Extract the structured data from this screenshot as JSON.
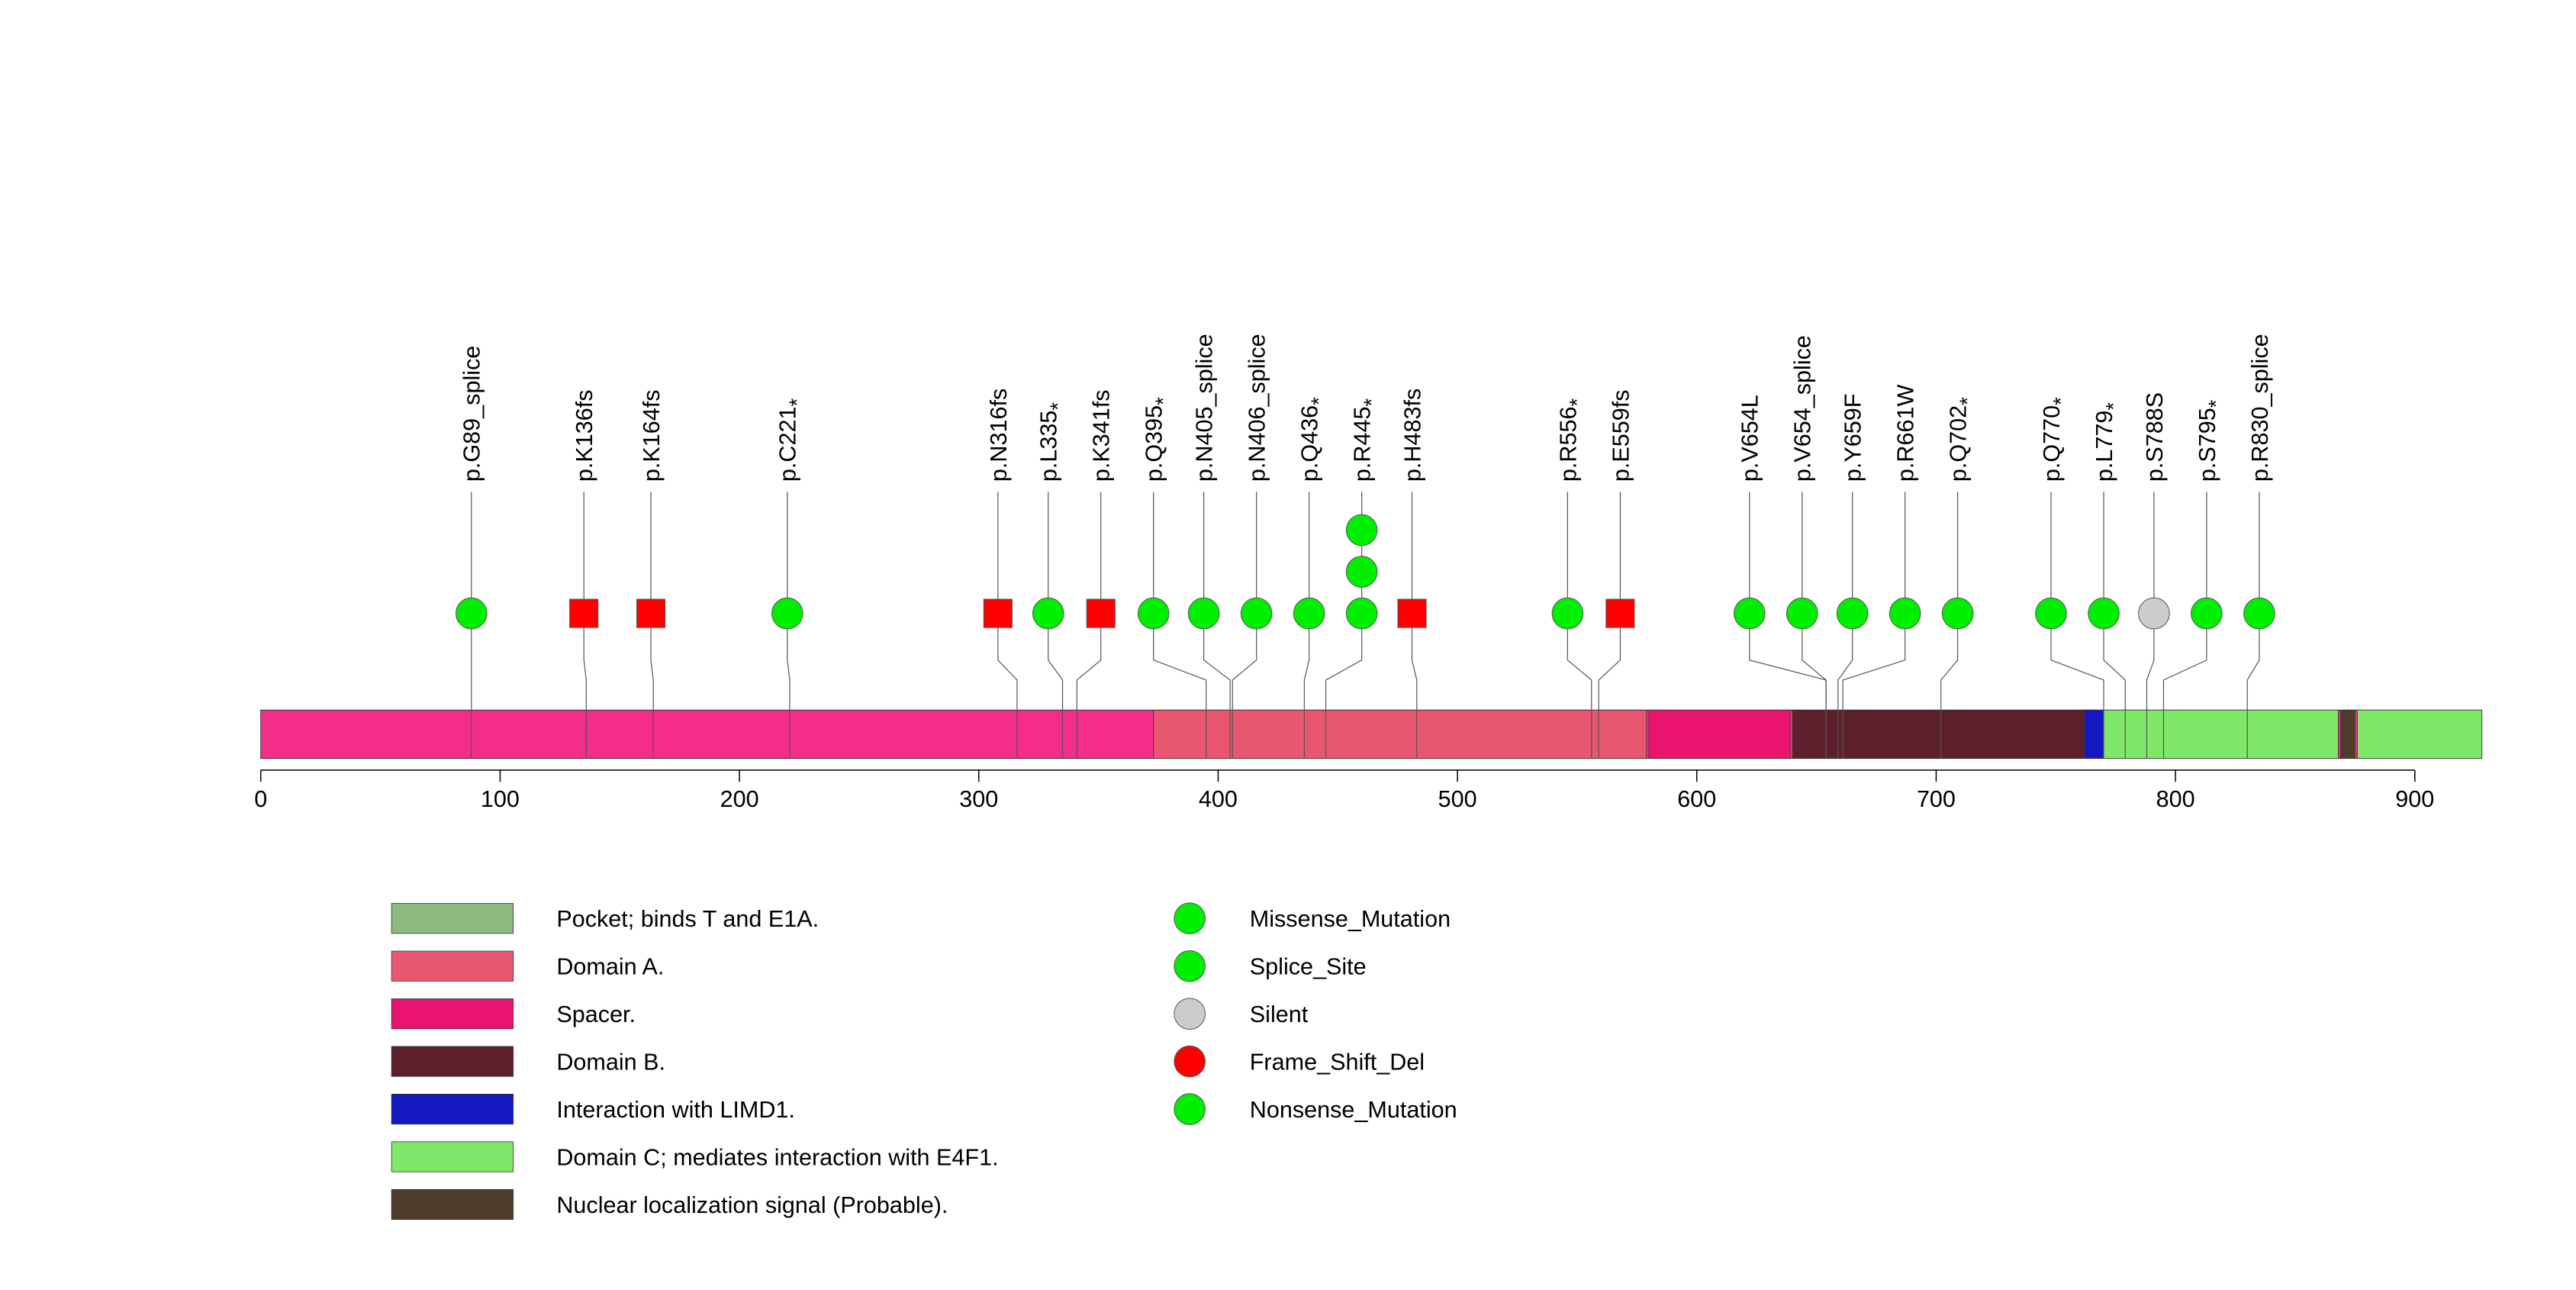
{
  "chart_data": {
    "type": "lollipop",
    "title": "",
    "xlabel": "",
    "ylabel": "",
    "axis": {
      "min": 0,
      "max": 928,
      "ticks": [
        0,
        100,
        200,
        300,
        400,
        500,
        600,
        700,
        800,
        900
      ]
    },
    "protein_length": 928,
    "colors": {
      "base_bar": "#f42d8a",
      "mutation_line": "#555555"
    },
    "domains": [
      {
        "name": "Domain A.",
        "start": 373,
        "end": 579,
        "color": "#e8566f"
      },
      {
        "name": "Spacer.",
        "start": 580,
        "end": 639,
        "color": "#e8146e"
      },
      {
        "name": "Domain B.",
        "start": 640,
        "end": 767,
        "color": "#5e1f2d"
      },
      {
        "name": "Interaction with LIMD1.",
        "start": 762,
        "end": 770,
        "color": "#1418c0"
      },
      {
        "name": "Domain C; mediates interaction with E4F1.",
        "start": 770,
        "end": 868,
        "color": "#80e868"
      },
      {
        "name": "Nuclear localization signal (Probable).",
        "start": 869,
        "end": 875,
        "color": "#4d3d2a"
      },
      {
        "name": "Domain C; mediates interaction with E4F1.",
        "start": 876,
        "end": 928,
        "color": "#80e868"
      }
    ],
    "mutation_types": {
      "Missense_Mutation": {
        "color": "#00ee00",
        "shape": "circle"
      },
      "Splice_Site": {
        "color": "#00ee00",
        "shape": "circle"
      },
      "Silent": {
        "color": "#cccccc",
        "shape": "circle"
      },
      "Frame_Shift_Del": {
        "color": "#ff0000",
        "shape": "square"
      },
      "Nonsense_Mutation": {
        "color": "#00ee00",
        "shape": "circle"
      }
    },
    "mutations": [
      {
        "label": "p.G89_splice",
        "star": false,
        "pos": 88,
        "display": 88,
        "type": "Splice_Site",
        "count": 1
      },
      {
        "label": "p.K136fs",
        "star": false,
        "pos": 136,
        "display": 135,
        "type": "Frame_Shift_Del",
        "count": 1
      },
      {
        "label": "p.K164fs",
        "star": false,
        "pos": 164,
        "display": 163,
        "type": "Frame_Shift_Del",
        "count": 1
      },
      {
        "label": "p.C221",
        "star": true,
        "pos": 221,
        "display": 220,
        "type": "Nonsense_Mutation",
        "count": 1
      },
      {
        "label": "p.N316fs",
        "star": false,
        "pos": 316,
        "display": 308,
        "type": "Frame_Shift_Del",
        "count": 1
      },
      {
        "label": "p.L335",
        "star": true,
        "pos": 335,
        "display": 329,
        "type": "Nonsense_Mutation",
        "count": 1
      },
      {
        "label": "p.K341fs",
        "star": false,
        "pos": 341,
        "display": 351,
        "type": "Frame_Shift_Del",
        "count": 1
      },
      {
        "label": "p.Q395",
        "star": true,
        "pos": 395,
        "display": 373,
        "type": "Nonsense_Mutation",
        "count": 1
      },
      {
        "label": "p.N405_splice",
        "star": false,
        "pos": 405,
        "display": 394,
        "type": "Splice_Site",
        "count": 1
      },
      {
        "label": "p.N406_splice",
        "star": false,
        "pos": 406,
        "display": 416,
        "type": "Splice_Site",
        "count": 1
      },
      {
        "label": "p.Q436",
        "star": true,
        "pos": 436,
        "display": 438,
        "type": "Nonsense_Mutation",
        "count": 1
      },
      {
        "label": "p.R445",
        "star": true,
        "pos": 445,
        "display": 460,
        "type": "Nonsense_Mutation",
        "count": 3
      },
      {
        "label": "p.H483fs",
        "star": false,
        "pos": 483,
        "display": 481,
        "type": "Frame_Shift_Del",
        "count": 1
      },
      {
        "label": "p.R556",
        "star": true,
        "pos": 556,
        "display": 546,
        "type": "Nonsense_Mutation",
        "count": 1
      },
      {
        "label": "p.E559fs",
        "star": false,
        "pos": 559,
        "display": 568,
        "type": "Frame_Shift_Del",
        "count": 1
      },
      {
        "label": "p.V654L",
        "star": false,
        "pos": 654,
        "display": 622,
        "type": "Missense_Mutation",
        "count": 1
      },
      {
        "label": "p.V654_splice",
        "star": false,
        "pos": 654,
        "display": 644,
        "type": "Splice_Site",
        "count": 1
      },
      {
        "label": "p.Y659F",
        "star": false,
        "pos": 659,
        "display": 665,
        "type": "Missense_Mutation",
        "count": 1
      },
      {
        "label": "p.R661W",
        "star": false,
        "pos": 661,
        "display": 687,
        "type": "Missense_Mutation",
        "count": 1
      },
      {
        "label": "p.Q702",
        "star": true,
        "pos": 702,
        "display": 709,
        "type": "Nonsense_Mutation",
        "count": 1
      },
      {
        "label": "p.Q770",
        "star": true,
        "pos": 770,
        "display": 748,
        "type": "Nonsense_Mutation",
        "count": 1
      },
      {
        "label": "p.L779",
        "star": true,
        "pos": 779,
        "display": 770,
        "type": "Nonsense_Mutation",
        "count": 1
      },
      {
        "label": "p.S788S",
        "star": false,
        "pos": 788,
        "display": 791,
        "type": "Silent",
        "count": 1
      },
      {
        "label": "p.S795",
        "star": true,
        "pos": 795,
        "display": 813,
        "type": "Nonsense_Mutation",
        "count": 1
      },
      {
        "label": "p.R830_splice",
        "star": false,
        "pos": 830,
        "display": 835,
        "type": "Splice_Site",
        "count": 1
      }
    ],
    "star_glyph": "*",
    "legend_domains": [
      {
        "label": "Pocket; binds T and E1A.",
        "color": "#8cba7e"
      },
      {
        "label": "Domain A.",
        "color": "#e8566f"
      },
      {
        "label": "Spacer.",
        "color": "#e8146e"
      },
      {
        "label": "Domain B.",
        "color": "#5e1f2d"
      },
      {
        "label": "Interaction with LIMD1.",
        "color": "#1418c0"
      },
      {
        "label": "Domain C; mediates interaction with E4F1.",
        "color": "#80e868"
      },
      {
        "label": "Nuclear localization signal (Probable).",
        "color": "#4d3d2a"
      }
    ],
    "legend_mutations": [
      {
        "label": "Missense_Mutation",
        "color": "#00ee00"
      },
      {
        "label": "Splice_Site",
        "color": "#00ee00"
      },
      {
        "label": "Silent",
        "color": "#cccccc"
      },
      {
        "label": "Frame_Shift_Del",
        "color": "#ff0000"
      },
      {
        "label": "Nonsense_Mutation",
        "color": "#00ee00"
      }
    ]
  }
}
